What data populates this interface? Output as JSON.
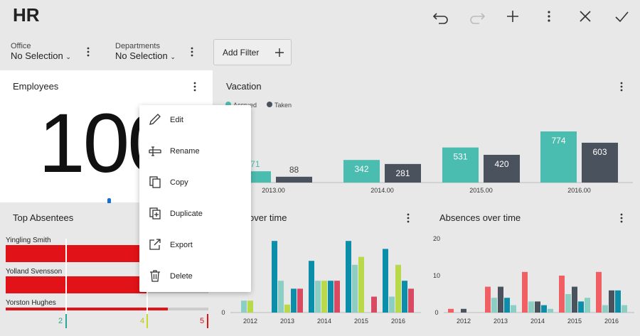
{
  "app": {
    "title": "HR"
  },
  "toolbar": {
    "icons": [
      "undo-icon",
      "redo-icon",
      "add-icon",
      "more-icon",
      "close-icon",
      "check-icon"
    ]
  },
  "filters": [
    {
      "label": "Office",
      "value": "No Selection"
    },
    {
      "label": "Departments",
      "value": "No Selection"
    }
  ],
  "add_filter_label": "Add Filter",
  "employees": {
    "title": "Employees",
    "value_visible": "100"
  },
  "context_menu": {
    "items": [
      {
        "label": "Edit",
        "icon": "pencil-icon"
      },
      {
        "label": "Rename",
        "icon": "rename-icon"
      },
      {
        "label": "Copy",
        "icon": "copy-icon"
      },
      {
        "label": "Duplicate",
        "icon": "duplicate-icon"
      },
      {
        "label": "Export",
        "icon": "export-icon"
      },
      {
        "label": "Delete",
        "icon": "trash-icon"
      }
    ]
  },
  "vacation": {
    "title": "Vacation",
    "legend": [
      "Accrued",
      "Taken"
    ]
  },
  "absentees": {
    "title": "Top Absentees",
    "names": [
      "Yingling Smith",
      "Yolland Svensson",
      "Yorston Hughes"
    ],
    "markers": [
      "2",
      "4",
      "5"
    ]
  },
  "middle_chart": {
    "title_visible": "over time"
  },
  "absences": {
    "title": "Absences over time"
  },
  "colors": {
    "teal": "#4bbcb0",
    "slate": "#4a525e",
    "red": "#e11218",
    "blue": "#0b8eaa",
    "lime": "#b9d84a",
    "crimson": "#d84a62",
    "salmon": "#ef5f63",
    "pale": "#8bcfc4"
  },
  "chart_data": [
    {
      "type": "bar",
      "title": "Vacation",
      "categories": [
        "2013.00",
        "2014.00",
        "2015.00",
        "2016.00"
      ],
      "series": [
        {
          "name": "Accrued",
          "values": [
            171,
            342,
            531,
            774
          ]
        },
        {
          "name": "Taken",
          "values": [
            88,
            281,
            420,
            603
          ]
        }
      ],
      "ylim": [
        0,
        800
      ]
    },
    {
      "type": "bar",
      "title": "over time",
      "categories": [
        "2012",
        "2013",
        "2014",
        "2015",
        "2016"
      ],
      "ylabel_ticks": [
        "0"
      ],
      "series": [
        {
          "values": [
            0,
            18,
            13,
            18,
            16
          ]
        },
        {
          "values": [
            3,
            8,
            8,
            12,
            4
          ]
        },
        {
          "values": [
            3,
            2,
            8,
            14,
            12
          ]
        },
        {
          "values": [
            0,
            6,
            8,
            0,
            8
          ]
        },
        {
          "values": [
            0,
            6,
            8,
            4,
            6
          ]
        }
      ]
    },
    {
      "type": "bar",
      "title": "Absences over time",
      "categories": [
        "2012",
        "2013",
        "2014",
        "2015",
        "2016"
      ],
      "y_ticks": [
        "0",
        "10",
        "20"
      ],
      "ylim": [
        0,
        20
      ],
      "series": [
        {
          "values": [
            1,
            7,
            11,
            10,
            11
          ]
        },
        {
          "values": [
            0,
            4,
            3,
            5,
            2
          ]
        },
        {
          "values": [
            1,
            7,
            3,
            7,
            6
          ]
        },
        {
          "values": [
            0,
            4,
            2,
            3,
            6
          ]
        },
        {
          "values": [
            0,
            2,
            1,
            4,
            2
          ]
        }
      ]
    }
  ]
}
